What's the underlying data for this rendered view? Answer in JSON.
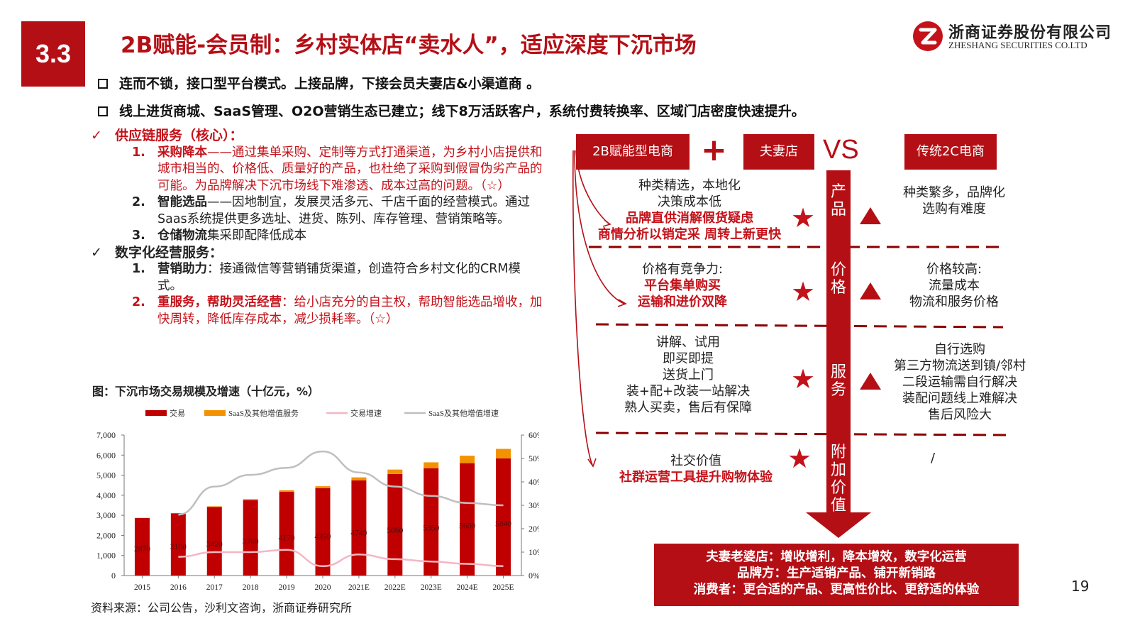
{
  "header": {
    "section": "3.3",
    "title": "2B赋能-会员制：乡村实体店“卖水人”，适应深度下沉市场",
    "logo_cn": "浙商证券股份有限公司",
    "logo_en": "ZHESHANG SECURITIES CO.LTD"
  },
  "bullets": [
    "连而不锁，接口型平台模式。上接品牌，下接会员夫妻店&小渠道商 。",
    "线上进货商城、SaaS管理、O2O营销生态已建立；线下8万活跃客户，系统付费转换率、区域门店密度快速提升。"
  ],
  "list": {
    "check_mark": "✓",
    "supply_head": "供应链服务（核心）：",
    "supply_items": [
      {
        "num": "1.",
        "bold": "采购降本",
        "text": "——通过集单采购、定制等方式打通渠道，为乡村小店提供和城市相当的、价格低、质量好的产品，也杜绝了采购到假冒伪劣产品的可能。为品牌解决下沉市场线下难渗透、成本过高的问题。（☆）"
      },
      {
        "num": "2.",
        "bold": "智能选品",
        "text": "——因地制宜，发展灵活多元、千店千面的经营模式。通过Saas系统提供更多选址、进货、陈列、库存管理、营销策略等。"
      },
      {
        "num": "3.",
        "bold": "仓储物流",
        "text": "集采即配降低成本"
      }
    ],
    "digital_head": "数字化经营服务：",
    "digital_items": [
      {
        "num": "1.",
        "bold": "营销助力",
        "text": "：接通微信等营销铺货渠道，创造符合乡村文化的CRM模式。"
      },
      {
        "num": "2.",
        "bold": "重服务，帮助灵活经营",
        "text": "：给小店充分的自主权，帮助智能选品增收，加快周转，降低库存成本，减少损耗率。（☆）"
      }
    ]
  },
  "chart_title": "图：下沉市场交易规模及增速（十亿元，%）",
  "chart_data": {
    "type": "bar",
    "categories": [
      "2015",
      "2016",
      "2017",
      "2018",
      "2019",
      "2020",
      "2021E",
      "2022E",
      "2023E",
      "2024E",
      "2025E"
    ],
    "series": [
      {
        "name": "交易",
        "kind": "bar",
        "axis": "left",
        "color": "#c00000",
        "values": [
          2870,
          3100,
          3420,
          3760,
          4170,
          4350,
          4740,
          5060,
          5350,
          5600,
          5840
        ]
      },
      {
        "name": "SaaS及其他增值服务",
        "kind": "bar-stack",
        "axis": "left",
        "color": "#f39200",
        "values": [
          0,
          10,
          30,
          50,
          80,
          100,
          150,
          220,
          290,
          370,
          470
        ]
      },
      {
        "name": "交易增速",
        "kind": "line",
        "axis": "right",
        "color": "#f4b6c2",
        "values": [
          null,
          8,
          10,
          10,
          11,
          4,
          9,
          7,
          6,
          5,
          4
        ]
      },
      {
        "name": "SaaS及其他增值增速",
        "kind": "line",
        "axis": "right",
        "color": "#bfbfbf",
        "values": [
          null,
          26,
          38,
          43,
          46,
          53,
          44,
          38,
          34,
          31,
          30
        ]
      }
    ],
    "data_labels": [
      "2870",
      "3100",
      "3420",
      "3760",
      "4170",
      "4350",
      "4740",
      "5060",
      "5350",
      "5600",
      "5840"
    ],
    "yticks_left": [
      "0",
      "1,000",
      "2,000",
      "3,000",
      "4,000",
      "5,000",
      "6,000",
      "7,000"
    ],
    "yticks_right": [
      "0%",
      "10%",
      "20%",
      "30%",
      "40%",
      "50%",
      "60%"
    ],
    "ylim_left": [
      0,
      7000
    ],
    "ylim_right": [
      0,
      60
    ],
    "legend_position": "top"
  },
  "source": "资料来源：公司公告，沙利文咨询，浙商证券研究所",
  "diagram": {
    "headers": {
      "left": "2B赋能型电商",
      "plus": "+",
      "middle": "夫妻店",
      "vs": "VS",
      "right": "传统2C电商"
    },
    "rows": [
      {
        "axis": [
          "产",
          "品"
        ],
        "left_plain": [
          "种类精选，本地化",
          "决策成本低"
        ],
        "left_red": [
          "品牌直供消解假货疑虑",
          "商情分析以销定采 周转上新更快"
        ],
        "right": [
          "种类繁多，品牌化",
          "选购有难度"
        ]
      },
      {
        "axis": [
          "价",
          "格"
        ],
        "left_plain": [
          "价格有竞争力:"
        ],
        "left_red": [
          "平台集单购买",
          "运输和进价双降"
        ],
        "right": [
          "价格较高:",
          "流量成本",
          "物流和服务价格"
        ]
      },
      {
        "axis": [
          "服",
          "务"
        ],
        "left_plain": [
          "讲解、试用",
          "即买即提",
          "送货上门",
          "装+配+改装一站解决",
          "熟人买卖，售后有保障"
        ],
        "left_red": [],
        "right": [
          "自行选购",
          "第三方物流送到镇/邻村",
          "二段运输需自行解决",
          "装配问题线上难解决",
          "售后风险大"
        ]
      },
      {
        "axis": [
          "附",
          "加",
          "价",
          "值"
        ],
        "left_plain": [
          "社交价值"
        ],
        "left_red": [
          "社群运营工具提升购物体验"
        ],
        "right": [
          "/"
        ]
      }
    ],
    "star_symbol": "★",
    "footer": [
      "夫妻老婆店：增收增利，降本增效，数字化运营",
      "品牌方：生产适销产品、铺开新销路",
      "消费者：更合适的产品、更高性价比、更舒适的体验"
    ]
  },
  "page_number": "19",
  "colors": {
    "brand": "#b50f16",
    "accent_red": "#c4121a",
    "bar": "#c00000",
    "bar_top": "#f39200"
  }
}
